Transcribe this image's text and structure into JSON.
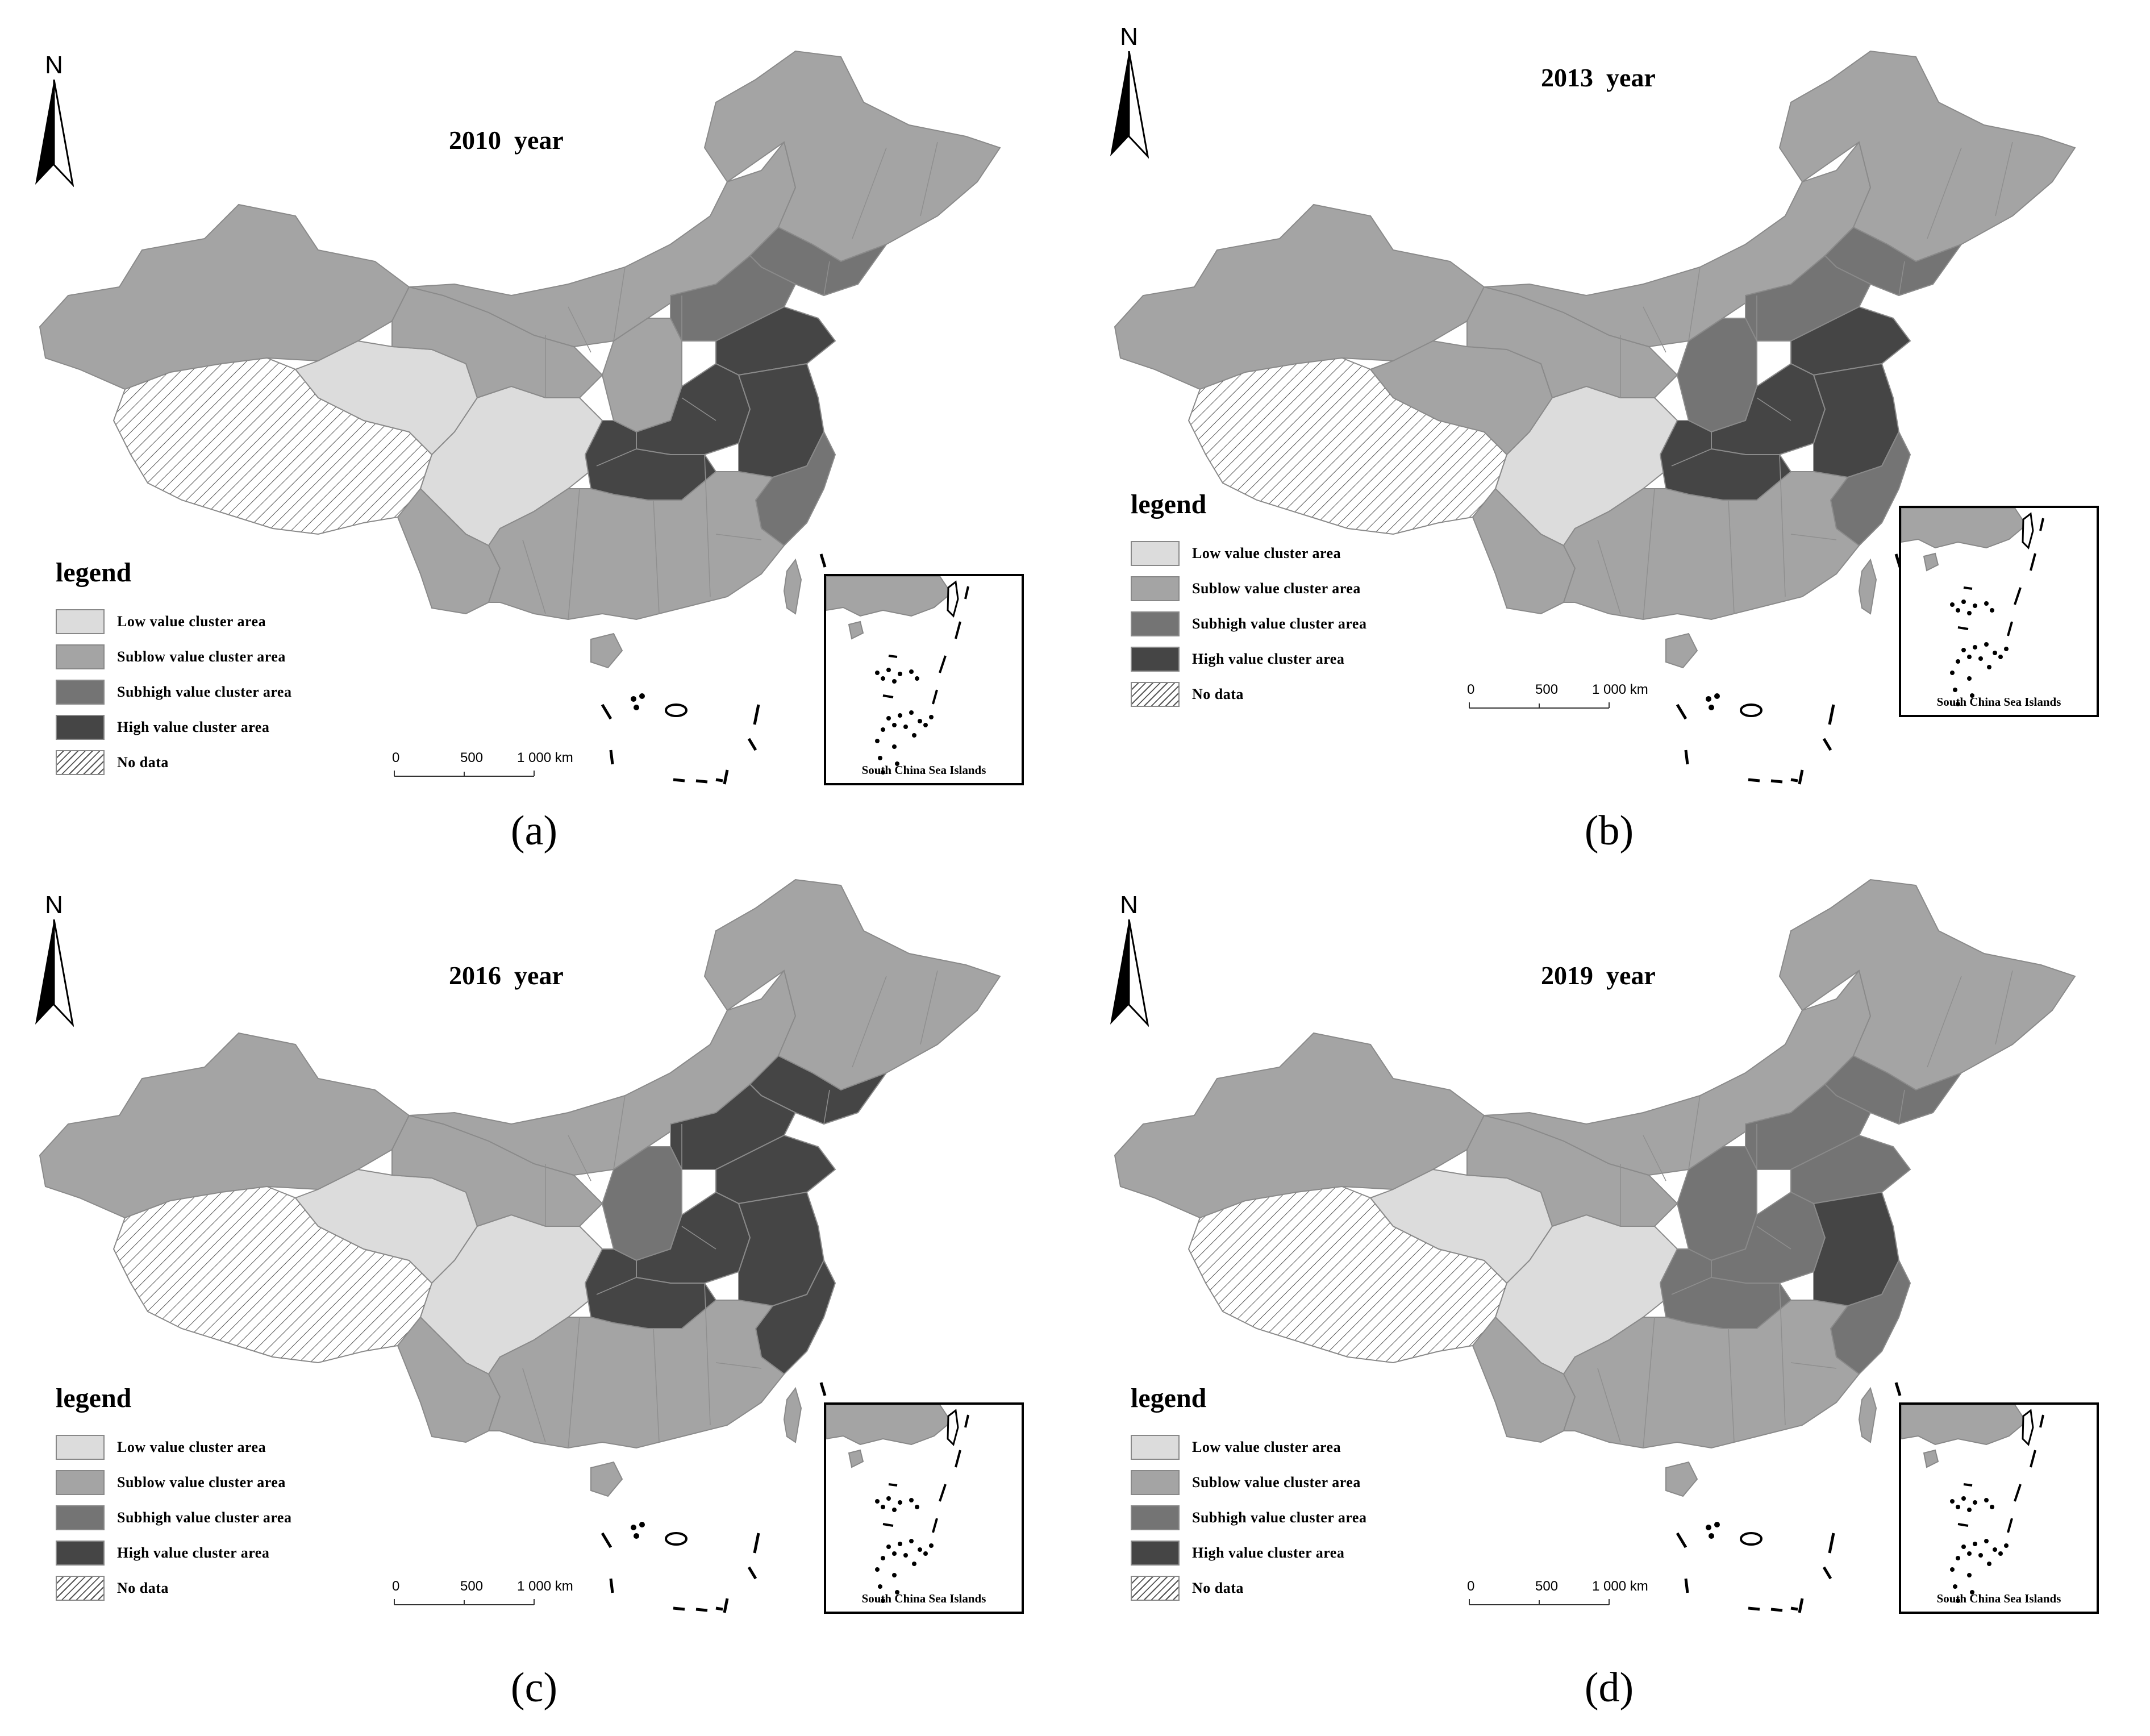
{
  "colors": {
    "low": "#dcdcdc",
    "sublow": "#a4a4a4",
    "subhigh": "#747474",
    "high": "#454545",
    "border": "#8a8a8a"
  },
  "legend": {
    "title": "legend",
    "items": [
      {
        "key": "low",
        "label": "Low value cluster area"
      },
      {
        "key": "sublow",
        "label": "Sublow value cluster area"
      },
      {
        "key": "subhigh",
        "label": "Subhigh value cluster area"
      },
      {
        "key": "high",
        "label": "High value cluster area"
      },
      {
        "key": "nodata",
        "label": "No data"
      }
    ]
  },
  "north_label": "N",
  "scalebar": {
    "ticks": [
      "0",
      "500",
      "1 000 km"
    ]
  },
  "inset_caption": "South China Sea Islands",
  "panels": [
    {
      "title": "2010  year",
      "label": "(a)",
      "regions": {
        "xinjiang": "sublow",
        "tibet": "nodata",
        "qinghai": "low",
        "sichuan": "low",
        "gansu": "sublow",
        "inner_mongolia": "sublow",
        "northeast": "sublow",
        "liaoning": "subhigh",
        "hebei": "subhigh",
        "shanxi": "sublow",
        "shandong": "high",
        "henan": "high",
        "hubei": "high",
        "jiangsu": "high",
        "zhejiang": "subhigh",
        "south": "sublow",
        "yunnan": "sublow",
        "hainan": "sublow",
        "taiwan": "sublow"
      }
    },
    {
      "title": "2013  year",
      "label": "(b)",
      "regions": {
        "xinjiang": "sublow",
        "tibet": "nodata",
        "qinghai": "sublow",
        "sichuan": "low",
        "gansu": "sublow",
        "inner_mongolia": "sublow",
        "northeast": "sublow",
        "liaoning": "subhigh",
        "hebei": "subhigh",
        "shanxi": "subhigh",
        "shandong": "high",
        "henan": "high",
        "hubei": "high",
        "jiangsu": "high",
        "zhejiang": "subhigh",
        "south": "sublow",
        "yunnan": "sublow",
        "hainan": "sublow",
        "taiwan": "sublow"
      }
    },
    {
      "title": "2016  year",
      "label": "(c)",
      "regions": {
        "xinjiang": "sublow",
        "tibet": "nodata",
        "qinghai": "low",
        "sichuan": "low",
        "gansu": "sublow",
        "inner_mongolia": "sublow",
        "northeast": "sublow",
        "liaoning": "high",
        "hebei": "high",
        "shanxi": "subhigh",
        "shandong": "high",
        "henan": "high",
        "hubei": "high",
        "jiangsu": "high",
        "zhejiang": "high",
        "south": "sublow",
        "yunnan": "sublow",
        "hainan": "sublow",
        "taiwan": "sublow"
      }
    },
    {
      "title": "2019  year",
      "label": "(d)",
      "regions": {
        "xinjiang": "sublow",
        "tibet": "nodata",
        "qinghai": "low",
        "sichuan": "low",
        "gansu": "sublow",
        "inner_mongolia": "sublow",
        "northeast": "sublow",
        "liaoning": "subhigh",
        "hebei": "subhigh",
        "shanxi": "subhigh",
        "shandong": "subhigh",
        "henan": "subhigh",
        "hubei": "subhigh",
        "jiangsu": "high",
        "zhejiang": "subhigh",
        "south": "sublow",
        "yunnan": "sublow",
        "hainan": "sublow",
        "taiwan": "sublow"
      }
    }
  ]
}
